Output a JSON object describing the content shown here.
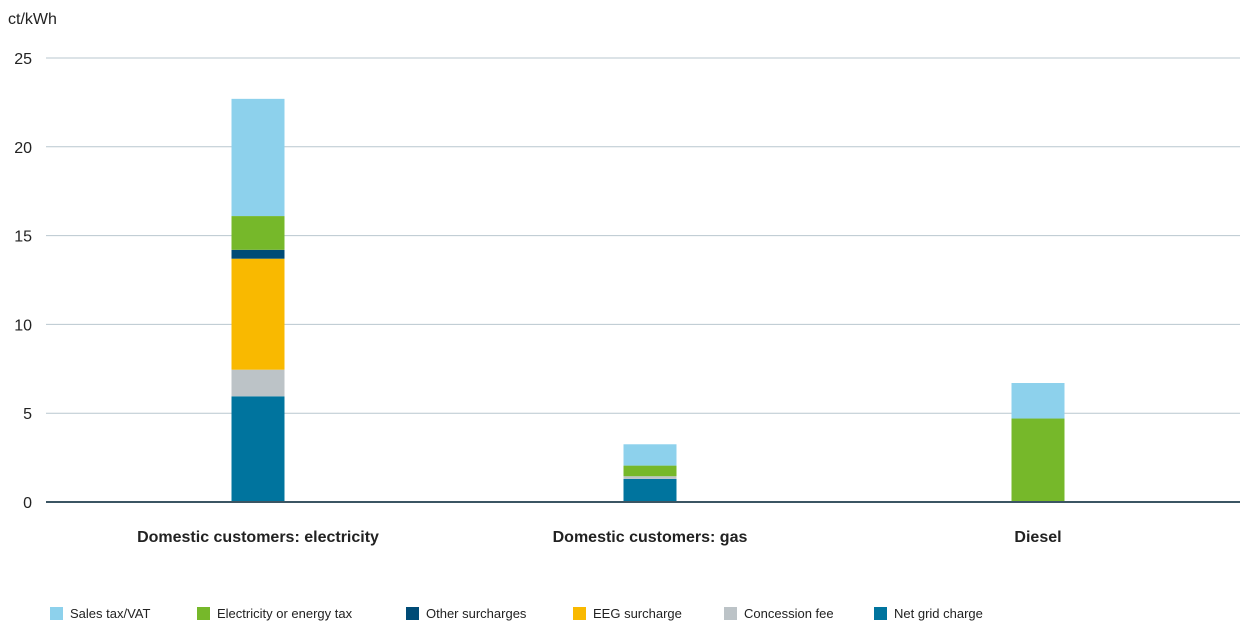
{
  "chart_data": {
    "type": "bar",
    "stacked": true,
    "title": "",
    "xlabel": "",
    "ylabel": "ct/kWh",
    "ylim": [
      0,
      25
    ],
    "yticks": [
      0,
      5,
      10,
      15,
      20,
      25
    ],
    "grid": true,
    "legend_position": "bottom",
    "categories": [
      "Domestic customers: electricity",
      "Domestic customers: gas",
      "Diesel"
    ],
    "series": [
      {
        "name": "Net grid charge",
        "color": "#00749e",
        "values": [
          5.95,
          1.3,
          0
        ]
      },
      {
        "name": "Concession fee",
        "color": "#bcc3c7",
        "values": [
          1.5,
          0.15,
          0
        ]
      },
      {
        "name": "EEG surcharge",
        "color": "#f9b900",
        "values": [
          6.25,
          0,
          0
        ]
      },
      {
        "name": "Other surcharges",
        "color": "#004b76",
        "values": [
          0.5,
          0,
          0
        ]
      },
      {
        "name": "Electricity or energy tax",
        "color": "#76b82a",
        "values": [
          1.9,
          0.6,
          4.7
        ]
      },
      {
        "name": "Sales tax/VAT",
        "color": "#8dd1ec",
        "values": [
          6.6,
          1.2,
          2.0
        ]
      }
    ],
    "legend_order": [
      "Sales tax/VAT",
      "Electricity or energy tax",
      "Other surcharges",
      "EEG surcharge",
      "Concession fee",
      "Net grid charge"
    ]
  }
}
